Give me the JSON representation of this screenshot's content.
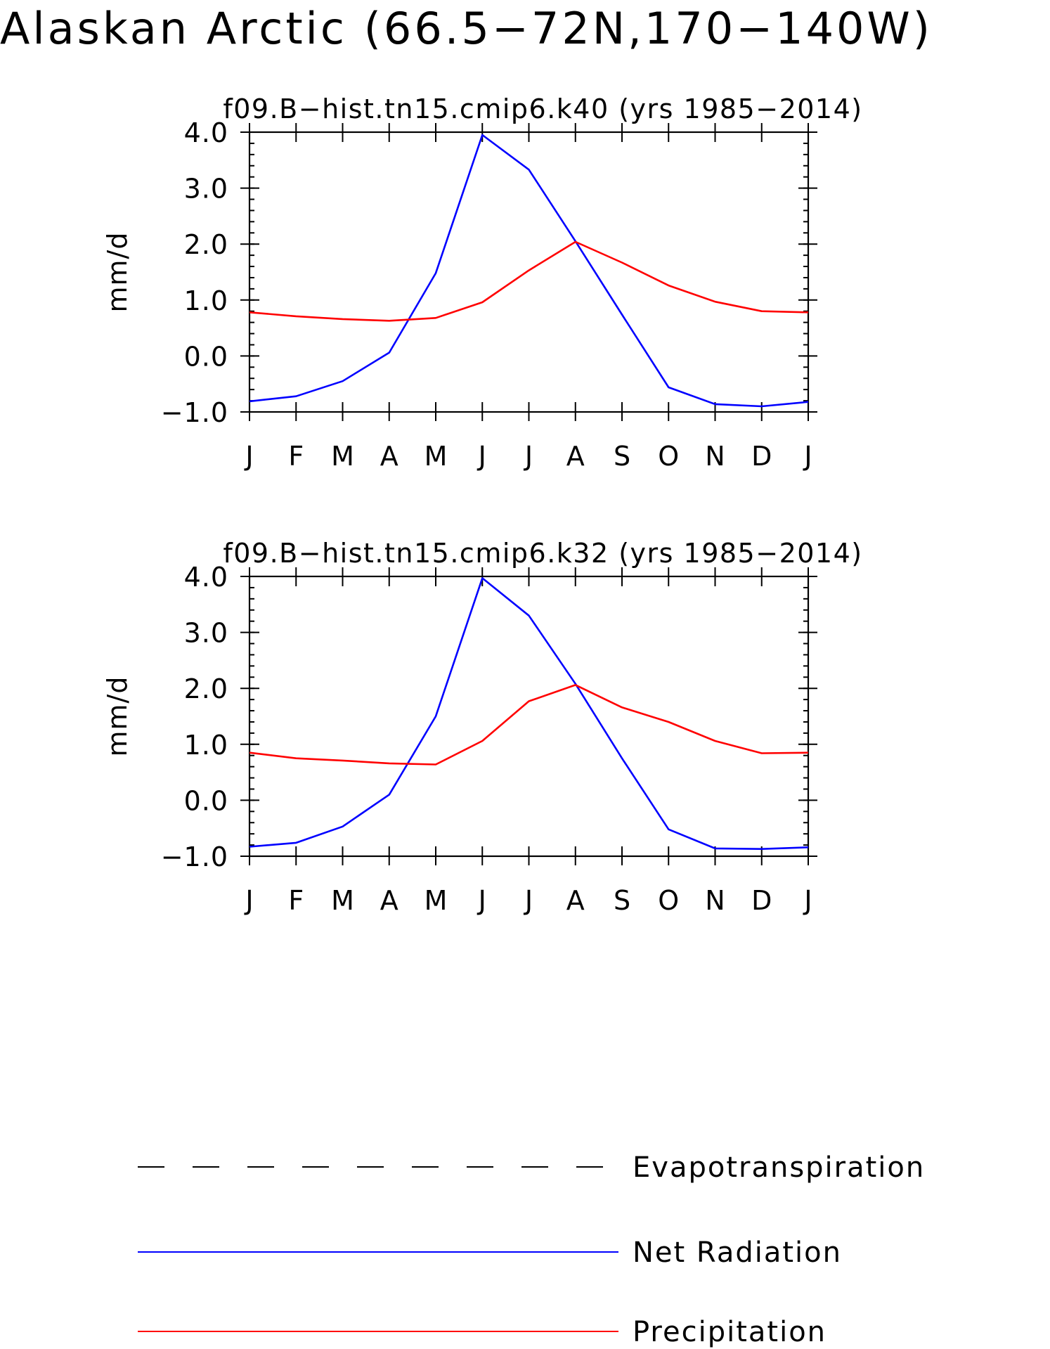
{
  "main_title": "Alaskan Arctic (66.5−72N,170−140W)",
  "chart_data": [
    {
      "type": "line",
      "title": "f09.B−hist.tn15.cmip6.k40 (yrs 1985−2014)",
      "ylabel": "mm/d",
      "xlabel": "",
      "categories": [
        "J",
        "F",
        "M",
        "A",
        "M",
        "J",
        "J",
        "A",
        "S",
        "O",
        "N",
        "D",
        "J"
      ],
      "ylim": [
        -1.0,
        4.0
      ],
      "yticks": [
        "−1.0",
        "0.0",
        "1.0",
        "2.0",
        "3.0",
        "4.0"
      ],
      "ytick_values": [
        -1.0,
        0.0,
        1.0,
        2.0,
        3.0,
        4.0
      ],
      "series": [
        {
          "name": "Net Radiation",
          "color": "#0000ff",
          "values": [
            -0.81,
            -0.72,
            -0.45,
            0.06,
            1.48,
            3.95,
            3.33,
            2.05,
            0.74,
            -0.56,
            -0.86,
            -0.9,
            -0.82
          ]
        },
        {
          "name": "Precipitation",
          "color": "#ff0000",
          "values": [
            0.78,
            0.71,
            0.66,
            0.63,
            0.68,
            0.96,
            1.53,
            2.04,
            1.67,
            1.26,
            0.97,
            0.8,
            0.78
          ]
        }
      ]
    },
    {
      "type": "line",
      "title": "f09.B−hist.tn15.cmip6.k32 (yrs 1985−2014)",
      "ylabel": "mm/d",
      "xlabel": "",
      "categories": [
        "J",
        "F",
        "M",
        "A",
        "M",
        "J",
        "J",
        "A",
        "S",
        "O",
        "N",
        "D",
        "J"
      ],
      "ylim": [
        -1.0,
        4.0
      ],
      "yticks": [
        "−1.0",
        "0.0",
        "1.0",
        "2.0",
        "3.0",
        "4.0"
      ],
      "ytick_values": [
        -1.0,
        0.0,
        1.0,
        2.0,
        3.0,
        4.0
      ],
      "series": [
        {
          "name": "Net Radiation",
          "color": "#0000ff",
          "values": [
            -0.83,
            -0.76,
            -0.47,
            0.1,
            1.5,
            3.97,
            3.3,
            2.08,
            0.75,
            -0.52,
            -0.86,
            -0.87,
            -0.84
          ]
        },
        {
          "name": "Precipitation",
          "color": "#ff0000",
          "values": [
            0.85,
            0.75,
            0.71,
            0.66,
            0.64,
            1.06,
            1.77,
            2.06,
            1.66,
            1.4,
            1.06,
            0.84,
            0.85
          ]
        }
      ]
    }
  ],
  "legend": [
    {
      "label": "Evapotranspiration",
      "color": "#000000",
      "style": "dashed"
    },
    {
      "label": "Net Radiation",
      "color": "#0000ff",
      "style": "solid"
    },
    {
      "label": "Precipitation",
      "color": "#ff0000",
      "style": "solid"
    }
  ]
}
